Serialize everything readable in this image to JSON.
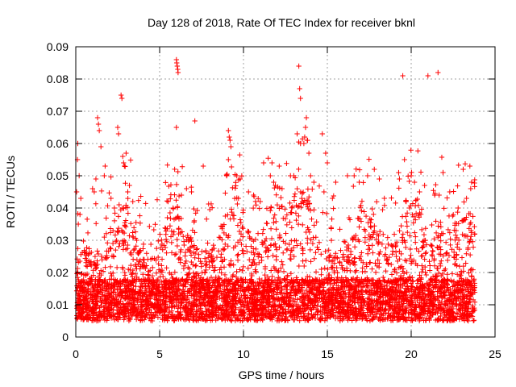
{
  "chart_data": {
    "type": "scatter",
    "title": "Day 128 of 2018, Rate Of TEC Index for receiver bknl",
    "xlabel": "GPS time / hours",
    "ylabel": "ROTI / TECUs",
    "xlim": [
      0,
      25
    ],
    "ylim": [
      0,
      0.09
    ],
    "x_ticks": [
      0,
      5,
      10,
      15,
      20,
      25
    ],
    "y_ticks": [
      0,
      0.01,
      0.02,
      0.03,
      0.04,
      0.05,
      0.06,
      0.07,
      0.08,
      0.09
    ],
    "x_tick_labels": [
      "0",
      "5",
      "10",
      "15",
      "20",
      "25"
    ],
    "y_tick_labels": [
      "0",
      "0.01",
      "0.02",
      "0.03",
      "0.04",
      "0.05",
      "0.06",
      "0.07",
      "0.08",
      "0.09"
    ],
    "grid": true,
    "marker": "+",
    "series_color": "#ff0000",
    "series": [
      {
        "name": "ROTI",
        "points": [
          [
            0.05,
            0.045
          ],
          [
            0.1,
            0.055
          ],
          [
            0.12,
            0.06
          ],
          [
            0.2,
            0.05
          ],
          [
            0.3,
            0.043
          ],
          [
            0.25,
            0.038
          ],
          [
            0.15,
            0.035
          ],
          [
            1.0,
            0.046
          ],
          [
            1.1,
            0.045
          ],
          [
            1.3,
            0.068
          ],
          [
            1.35,
            0.066
          ],
          [
            1.4,
            0.064
          ],
          [
            1.5,
            0.059
          ],
          [
            1.7,
            0.05
          ],
          [
            1.75,
            0.053
          ],
          [
            1.2,
            0.049
          ],
          [
            2.5,
            0.065
          ],
          [
            2.55,
            0.063
          ],
          [
            2.7,
            0.075
          ],
          [
            2.75,
            0.074
          ],
          [
            2.8,
            0.056
          ],
          [
            2.85,
            0.054
          ],
          [
            2.9,
            0.053
          ],
          [
            3.0,
            0.057
          ],
          [
            2.1,
            0.043
          ],
          [
            2.3,
            0.04
          ],
          [
            3.2,
            0.047
          ],
          [
            3.4,
            0.042
          ],
          [
            3.1,
            0.045
          ],
          [
            6.0,
            0.086
          ],
          [
            6.02,
            0.085
          ],
          [
            6.05,
            0.084
          ],
          [
            6.08,
            0.083
          ],
          [
            6.1,
            0.082
          ],
          [
            6.0,
            0.065
          ],
          [
            5.5,
            0.042
          ],
          [
            5.8,
            0.04
          ],
          [
            6.3,
            0.044
          ],
          [
            6.6,
            0.046
          ],
          [
            6.9,
            0.045
          ],
          [
            7.1,
            0.067
          ],
          [
            7.6,
            0.053
          ],
          [
            9.1,
            0.064
          ],
          [
            9.15,
            0.062
          ],
          [
            9.2,
            0.061
          ],
          [
            9.25,
            0.059
          ],
          [
            9.1,
            0.055
          ],
          [
            9.0,
            0.05
          ],
          [
            9.6,
            0.05
          ],
          [
            9.8,
            0.049
          ],
          [
            9.7,
            0.043
          ],
          [
            10.3,
            0.045
          ],
          [
            10.6,
            0.044
          ],
          [
            11.0,
            0.042
          ],
          [
            11.2,
            0.054
          ],
          [
            11.6,
            0.05
          ],
          [
            11.7,
            0.054
          ],
          [
            11.8,
            0.048
          ],
          [
            11.9,
            0.047
          ],
          [
            12.3,
            0.046
          ],
          [
            12.8,
            0.05
          ],
          [
            13.0,
            0.05
          ],
          [
            13.3,
            0.084
          ],
          [
            13.35,
            0.077
          ],
          [
            13.4,
            0.074
          ],
          [
            13.2,
            0.063
          ],
          [
            13.4,
            0.06
          ],
          [
            13.6,
            0.06
          ],
          [
            13.65,
            0.062
          ],
          [
            13.7,
            0.065
          ],
          [
            13.75,
            0.068
          ],
          [
            13.8,
            0.061
          ],
          [
            13.9,
            0.057
          ],
          [
            14.0,
            0.05
          ],
          [
            14.2,
            0.048
          ],
          [
            14.7,
            0.063
          ],
          [
            14.9,
            0.057
          ],
          [
            15.0,
            0.054
          ],
          [
            14.8,
            0.045
          ],
          [
            15.5,
            0.048
          ],
          [
            16.2,
            0.05
          ],
          [
            16.6,
            0.05
          ],
          [
            16.9,
            0.048
          ],
          [
            17.4,
            0.05
          ],
          [
            17.8,
            0.052
          ],
          [
            18.1,
            0.049
          ],
          [
            18.4,
            0.043
          ],
          [
            19.5,
            0.081
          ],
          [
            19.6,
            0.055
          ],
          [
            19.3,
            0.049
          ],
          [
            19.7,
            0.042
          ],
          [
            19.9,
            0.04
          ],
          [
            20.0,
            0.05
          ],
          [
            20.2,
            0.048
          ],
          [
            20.5,
            0.045
          ],
          [
            20.8,
            0.047
          ],
          [
            21.0,
            0.081
          ],
          [
            21.6,
            0.082
          ],
          [
            21.9,
            0.051
          ],
          [
            21.4,
            0.044
          ],
          [
            22.3,
            0.045
          ],
          [
            23.1,
            0.052
          ],
          [
            23.5,
            0.053
          ],
          [
            23.6,
            0.048
          ],
          [
            23.55,
            0.046
          ],
          [
            23.3,
            0.043
          ],
          [
            22.8,
            0.04
          ]
        ]
      }
    ]
  }
}
